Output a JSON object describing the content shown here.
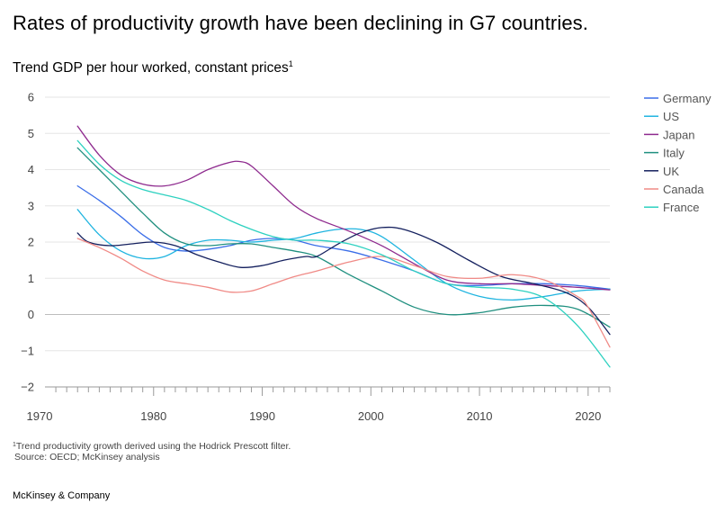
{
  "header": {
    "title": "Rates of productivity growth have been declining in G7 countries.",
    "subtitle": "Trend GDP per hour worked, constant prices",
    "subtitle_sup": "1"
  },
  "footer": {
    "footnote_sup": "1",
    "footnote": "Trend productivity growth derived using the Hodrick Prescott filter.",
    "source": "Source: OECD; McKinsey analysis",
    "brand": "McKinsey & Company"
  },
  "chart_data": {
    "type": "line",
    "title": "Trend GDP per hour worked, constant prices",
    "xlabel": "",
    "ylabel": "",
    "xlim": [
      1970,
      2022
    ],
    "ylim": [
      -2,
      6
    ],
    "x_ticks": [
      1970,
      1980,
      1990,
      2000,
      2010,
      2020
    ],
    "y_ticks": [
      -2,
      -1,
      0,
      1,
      2,
      3,
      4,
      5,
      6
    ],
    "y_tick_labels": [
      "−2",
      "−1",
      "0",
      "1",
      "2",
      "3",
      "4",
      "5",
      "6"
    ],
    "grid": "horizontal",
    "legend_position": "right",
    "series": [
      {
        "name": "Germany",
        "color": "#3b6ee8",
        "x": [
          1973,
          1975,
          1977,
          1979,
          1981,
          1983,
          1985,
          1987,
          1989,
          1991,
          1993,
          1995,
          1998,
          2001,
          2004,
          2007,
          2010,
          2013,
          2016,
          2019,
          2022
        ],
        "y": [
          3.55,
          3.15,
          2.7,
          2.2,
          1.85,
          1.75,
          1.8,
          1.9,
          2.05,
          2.1,
          2.05,
          1.9,
          1.75,
          1.5,
          1.2,
          0.85,
          0.8,
          0.85,
          0.85,
          0.8,
          0.7
        ]
      },
      {
        "name": "US",
        "color": "#1fb4e0",
        "x": [
          1973,
          1975,
          1977,
          1979,
          1981,
          1983,
          1985,
          1987,
          1989,
          1991,
          1993,
          1995,
          1997,
          1999,
          2001,
          2004,
          2007,
          2010,
          2013,
          2016,
          2019,
          2022
        ],
        "y": [
          2.9,
          2.2,
          1.75,
          1.55,
          1.6,
          1.9,
          2.05,
          2.05,
          2.0,
          2.05,
          2.1,
          2.25,
          2.35,
          2.35,
          2.15,
          1.5,
          0.85,
          0.5,
          0.4,
          0.5,
          0.65,
          0.7
        ]
      },
      {
        "name": "Japan",
        "color": "#8e2a8e",
        "x": [
          1973,
          1975,
          1977,
          1979,
          1981,
          1983,
          1985,
          1987,
          1988,
          1989,
          1991,
          1993,
          1995,
          1998,
          2001,
          2004,
          2007,
          2010,
          2013,
          2016,
          2019,
          2022
        ],
        "y": [
          5.2,
          4.4,
          3.85,
          3.6,
          3.55,
          3.7,
          4.0,
          4.2,
          4.22,
          4.1,
          3.55,
          3.0,
          2.65,
          2.3,
          1.9,
          1.4,
          0.95,
          0.85,
          0.85,
          0.8,
          0.75,
          0.68
        ]
      },
      {
        "name": "Italy",
        "color": "#1f8f7f",
        "x": [
          1973,
          1975,
          1977,
          1979,
          1981,
          1983,
          1985,
          1987,
          1989,
          1991,
          1993,
          1995,
          1998,
          2001,
          2004,
          2007,
          2010,
          2013,
          2016,
          2019,
          2022
        ],
        "y": [
          4.6,
          4.0,
          3.4,
          2.8,
          2.25,
          1.95,
          1.9,
          1.95,
          1.95,
          1.85,
          1.75,
          1.6,
          1.1,
          0.65,
          0.2,
          0.0,
          0.05,
          0.2,
          0.25,
          0.15,
          -0.35
        ]
      },
      {
        "name": "UK",
        "color": "#14205e",
        "x": [
          1973,
          1974,
          1976,
          1978,
          1980,
          1982,
          1984,
          1986,
          1988,
          1990,
          1992,
          1994,
          1995,
          1997,
          1999,
          2001,
          2003,
          2006,
          2009,
          2012,
          2015,
          2018,
          2020,
          2022
        ],
        "y": [
          2.25,
          2.0,
          1.9,
          1.95,
          2.0,
          1.9,
          1.65,
          1.45,
          1.3,
          1.35,
          1.5,
          1.6,
          1.6,
          1.95,
          2.25,
          2.4,
          2.35,
          2.0,
          1.5,
          1.05,
          0.85,
          0.6,
          0.2,
          -0.55
        ]
      },
      {
        "name": "Canada",
        "color": "#f08a86",
        "x": [
          1973,
          1975,
          1977,
          1979,
          1981,
          1983,
          1985,
          1987,
          1989,
          1991,
          1993,
          1995,
          1998,
          2001,
          2004,
          2007,
          2010,
          2013,
          2016,
          2019,
          2020,
          2022
        ],
        "y": [
          2.1,
          1.85,
          1.55,
          1.2,
          0.95,
          0.85,
          0.75,
          0.62,
          0.65,
          0.85,
          1.05,
          1.2,
          1.45,
          1.6,
          1.35,
          1.05,
          1.0,
          1.1,
          0.95,
          0.5,
          0.2,
          -0.9
        ]
      },
      {
        "name": "France",
        "color": "#2ed1c0",
        "x": [
          1973,
          1975,
          1977,
          1979,
          1981,
          1983,
          1985,
          1987,
          1989,
          1991,
          1993,
          1995,
          1998,
          2001,
          2004,
          2007,
          2010,
          2013,
          2016,
          2019,
          2022
        ],
        "y": [
          4.8,
          4.15,
          3.7,
          3.45,
          3.3,
          3.15,
          2.9,
          2.6,
          2.35,
          2.15,
          2.05,
          2.05,
          1.95,
          1.65,
          1.2,
          0.85,
          0.75,
          0.7,
          0.45,
          -0.3,
          -1.45
        ]
      }
    ]
  }
}
